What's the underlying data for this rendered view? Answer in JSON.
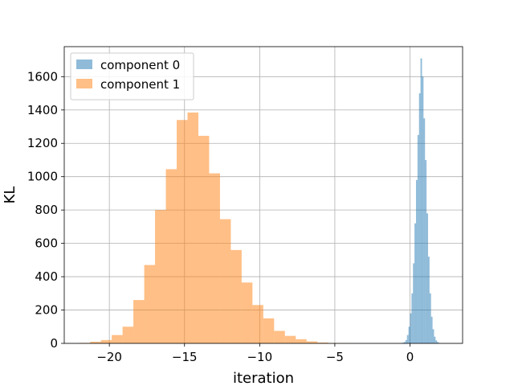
{
  "chart_data": {
    "type": "bar",
    "title": "",
    "xlabel": "iteration",
    "ylabel": "KL",
    "xlim": [
      -23,
      3.5
    ],
    "ylim": [
      0,
      1780
    ],
    "xticks": [
      -20,
      -15,
      -10,
      -5,
      0
    ],
    "xtick_labels": [
      "−20",
      "−15",
      "−10",
      "−5",
      "0"
    ],
    "yticks": [
      0,
      200,
      400,
      600,
      800,
      1000,
      1200,
      1400,
      1600
    ],
    "grid": true,
    "legend_position": "top-left",
    "series": [
      {
        "name": "component 0",
        "color": "#1f77b4",
        "opacity": 0.5,
        "bin_start": -0.6,
        "bin_width": 0.1,
        "counts": [
          2,
          4,
          8,
          20,
          50,
          100,
          180,
          300,
          480,
          720,
          980,
          1250,
          1500,
          1710,
          1600,
          1350,
          1100,
          780,
          520,
          300,
          160,
          85,
          40,
          18,
          8,
          3
        ]
      },
      {
        "name": "component 1",
        "color": "#ff7f0e",
        "opacity": 0.5,
        "bin_start": -22.0,
        "bin_width": 0.72,
        "counts": [
          3,
          10,
          20,
          50,
          100,
          260,
          470,
          800,
          1045,
          1340,
          1385,
          1245,
          1020,
          745,
          560,
          365,
          230,
          150,
          75,
          45,
          25,
          12,
          5,
          2,
          1
        ]
      }
    ]
  }
}
